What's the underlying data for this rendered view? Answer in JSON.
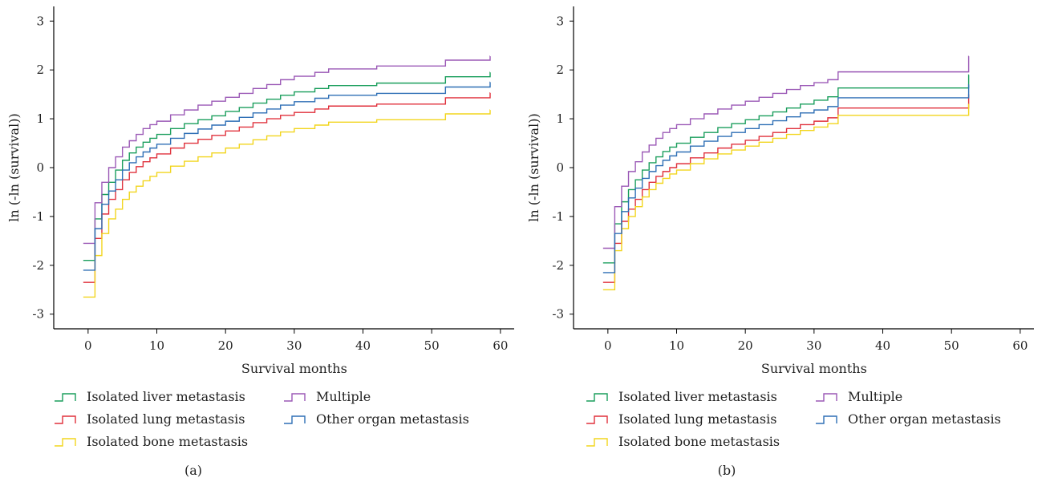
{
  "chart_data": [
    {
      "type": "line",
      "panel_label": "(a)",
      "xlabel": "Survival months",
      "ylabel": "ln (-ln (survival))",
      "xlim": [
        -5,
        62
      ],
      "ylim": [
        -3.3,
        3.3
      ],
      "x_ticks": [
        0,
        10,
        20,
        30,
        40,
        50,
        60
      ],
      "x_tick_labels": [
        "0",
        "10",
        "20",
        "30",
        "40",
        "50",
        "60"
      ],
      "y_ticks": [
        3,
        2,
        1,
        0,
        -1,
        -2,
        -3
      ],
      "y_tick_labels": [
        "3",
        "2",
        "1",
        "0",
        "-1",
        "-2",
        "-3"
      ],
      "step": true,
      "grid": false,
      "legend_position": "bottom-left",
      "series": [
        {
          "name": "Isolated liver metastasis",
          "color": "#1a9e5c",
          "x": [
            0,
            1,
            2,
            3,
            4,
            5,
            6,
            7,
            8,
            9,
            10,
            12,
            14,
            16,
            18,
            20,
            22,
            24,
            26,
            28,
            30,
            33,
            35,
            42,
            52,
            58.5
          ],
          "y": [
            -1.9,
            -1.05,
            -0.55,
            -0.3,
            -0.05,
            0.15,
            0.3,
            0.42,
            0.52,
            0.6,
            0.68,
            0.8,
            0.9,
            0.98,
            1.06,
            1.15,
            1.23,
            1.32,
            1.4,
            1.48,
            1.55,
            1.62,
            1.68,
            1.73,
            1.86,
            1.95
          ]
        },
        {
          "name": "Isolated lung metastasis",
          "color": "#e0313c",
          "x": [
            0,
            1,
            2,
            3,
            4,
            5,
            6,
            7,
            8,
            9,
            10,
            12,
            14,
            16,
            18,
            20,
            22,
            24,
            26,
            28,
            30,
            33,
            35,
            42,
            52,
            58.5
          ],
          "y": [
            -2.35,
            -1.45,
            -0.95,
            -0.65,
            -0.45,
            -0.25,
            -0.1,
            0.02,
            0.12,
            0.2,
            0.28,
            0.4,
            0.5,
            0.58,
            0.66,
            0.75,
            0.83,
            0.92,
            1.0,
            1.07,
            1.13,
            1.2,
            1.26,
            1.3,
            1.43,
            1.53
          ]
        },
        {
          "name": "Isolated bone metastasis",
          "color": "#f2d51d",
          "x": [
            0,
            1,
            2,
            3,
            4,
            5,
            6,
            7,
            8,
            9,
            10,
            12,
            14,
            16,
            18,
            20,
            22,
            24,
            26,
            28,
            30,
            33,
            35,
            42,
            52,
            58.5
          ],
          "y": [
            -2.65,
            -1.8,
            -1.35,
            -1.05,
            -0.85,
            -0.65,
            -0.5,
            -0.38,
            -0.27,
            -0.18,
            -0.1,
            0.03,
            0.13,
            0.22,
            0.3,
            0.4,
            0.48,
            0.57,
            0.65,
            0.73,
            0.8,
            0.87,
            0.93,
            0.98,
            1.1,
            1.18
          ]
        },
        {
          "name": "Multiple",
          "color": "#9b59b6",
          "x": [
            0,
            1,
            2,
            3,
            4,
            5,
            6,
            7,
            8,
            9,
            10,
            12,
            14,
            16,
            18,
            20,
            22,
            24,
            26,
            28,
            30,
            33,
            35,
            42,
            52,
            58.5
          ],
          "y": [
            -1.55,
            -0.72,
            -0.3,
            0.0,
            0.22,
            0.42,
            0.55,
            0.68,
            0.8,
            0.88,
            0.95,
            1.08,
            1.18,
            1.28,
            1.36,
            1.44,
            1.52,
            1.62,
            1.7,
            1.8,
            1.87,
            1.95,
            2.02,
            2.08,
            2.2,
            2.28
          ]
        },
        {
          "name": "Other organ metastasis",
          "color": "#2e6fb5",
          "x": [
            0,
            1,
            2,
            3,
            4,
            5,
            6,
            7,
            8,
            9,
            10,
            12,
            14,
            16,
            18,
            20,
            22,
            24,
            26,
            28,
            30,
            33,
            35,
            42,
            52,
            58.5
          ],
          "y": [
            -2.1,
            -1.25,
            -0.75,
            -0.48,
            -0.25,
            -0.05,
            0.1,
            0.22,
            0.32,
            0.4,
            0.48,
            0.6,
            0.7,
            0.79,
            0.87,
            0.95,
            1.03,
            1.12,
            1.2,
            1.28,
            1.35,
            1.42,
            1.48,
            1.52,
            1.65,
            1.75
          ]
        }
      ],
      "legend_layout": [
        [
          "Isolated liver metastasis",
          "Multiple"
        ],
        [
          "Isolated lung metastasis",
          "Other organ metastasis"
        ],
        [
          "Isolated bone metastasis"
        ]
      ]
    },
    {
      "type": "line",
      "panel_label": "(b)",
      "xlabel": "Survival months",
      "ylabel": "ln (-ln (survival))",
      "xlim": [
        -5,
        62
      ],
      "ylim": [
        -3.3,
        3.3
      ],
      "x_ticks": [
        0,
        10,
        20,
        30,
        40,
        50,
        60
      ],
      "x_tick_labels": [
        "0",
        "10",
        "20",
        "30",
        "40",
        "50",
        "60"
      ],
      "y_ticks": [
        3,
        2,
        1,
        0,
        -1,
        -2,
        -3
      ],
      "y_tick_labels": [
        "3",
        "2",
        "1",
        "0",
        "-1",
        "-2",
        "-3"
      ],
      "step": true,
      "grid": false,
      "legend_position": "bottom-left",
      "series": [
        {
          "name": "Isolated liver metastasis",
          "color": "#1a9e5c",
          "x": [
            0,
            1,
            2,
            3,
            4,
            5,
            6,
            7,
            8,
            9,
            10,
            12,
            14,
            16,
            18,
            20,
            22,
            24,
            26,
            28,
            30,
            32,
            33.5,
            52.5
          ],
          "y": [
            -1.95,
            -1.15,
            -0.7,
            -0.45,
            -0.25,
            -0.05,
            0.1,
            0.22,
            0.33,
            0.42,
            0.5,
            0.62,
            0.72,
            0.82,
            0.9,
            0.98,
            1.06,
            1.14,
            1.22,
            1.3,
            1.38,
            1.45,
            1.63,
            1.9
          ]
        },
        {
          "name": "Isolated lung metastasis",
          "color": "#e0313c",
          "x": [
            0,
            1,
            2,
            3,
            4,
            5,
            6,
            7,
            8,
            9,
            10,
            12,
            14,
            16,
            18,
            20,
            22,
            24,
            26,
            28,
            30,
            32,
            33.5,
            52.5
          ],
          "y": [
            -2.35,
            -1.55,
            -1.1,
            -0.85,
            -0.65,
            -0.45,
            -0.3,
            -0.18,
            -0.08,
            0.0,
            0.08,
            0.2,
            0.3,
            0.4,
            0.48,
            0.56,
            0.64,
            0.72,
            0.8,
            0.88,
            0.95,
            1.02,
            1.22,
            1.5
          ]
        },
        {
          "name": "Isolated bone metastasis",
          "color": "#f2d51d",
          "x": [
            0,
            1,
            2,
            3,
            4,
            5,
            6,
            7,
            8,
            9,
            10,
            12,
            14,
            16,
            18,
            20,
            22,
            24,
            26,
            28,
            30,
            32,
            33.5,
            52.5
          ],
          "y": [
            -2.5,
            -1.7,
            -1.25,
            -1.0,
            -0.8,
            -0.6,
            -0.45,
            -0.32,
            -0.22,
            -0.13,
            -0.05,
            0.08,
            0.18,
            0.28,
            0.36,
            0.44,
            0.52,
            0.6,
            0.68,
            0.76,
            0.83,
            0.9,
            1.07,
            1.3
          ]
        },
        {
          "name": "Multiple",
          "color": "#9b59b6",
          "x": [
            0,
            1,
            2,
            3,
            4,
            5,
            6,
            7,
            8,
            9,
            10,
            12,
            14,
            16,
            18,
            20,
            22,
            24,
            26,
            28,
            30,
            32,
            33.5,
            52.5
          ],
          "y": [
            -1.65,
            -0.8,
            -0.38,
            -0.08,
            0.12,
            0.32,
            0.46,
            0.6,
            0.72,
            0.8,
            0.88,
            1.0,
            1.1,
            1.2,
            1.28,
            1.36,
            1.44,
            1.52,
            1.6,
            1.68,
            1.74,
            1.8,
            1.96,
            2.28
          ]
        },
        {
          "name": "Other organ metastasis",
          "color": "#2e6fb5",
          "x": [
            0,
            1,
            2,
            3,
            4,
            5,
            6,
            7,
            8,
            9,
            10,
            12,
            14,
            16,
            18,
            20,
            22,
            24,
            26,
            28,
            30,
            32,
            33.5,
            52.5
          ],
          "y": [
            -2.15,
            -1.35,
            -0.9,
            -0.62,
            -0.42,
            -0.22,
            -0.08,
            0.04,
            0.15,
            0.24,
            0.32,
            0.44,
            0.54,
            0.64,
            0.72,
            0.8,
            0.88,
            0.96,
            1.04,
            1.12,
            1.18,
            1.25,
            1.43,
            1.7
          ]
        }
      ],
      "legend_layout": [
        [
          "Isolated liver metastasis",
          "Multiple"
        ],
        [
          "Isolated lung metastasis",
          "Other organ metastasis"
        ],
        [
          "Isolated bone metastasis"
        ]
      ]
    }
  ]
}
